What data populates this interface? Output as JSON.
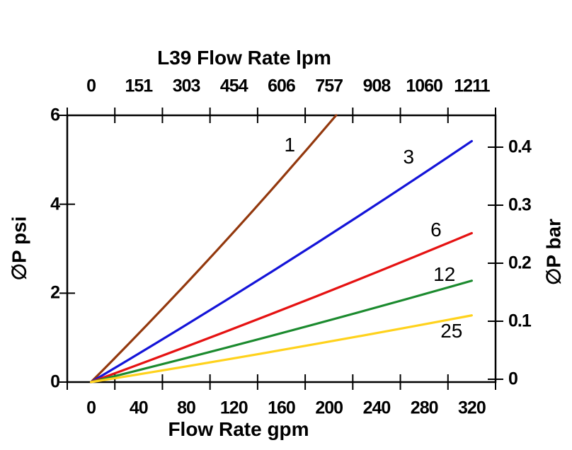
{
  "chart_data": {
    "type": "line",
    "title": "L39 Flow Rate lpm",
    "background": "#ffffff",
    "frame_color": "#000000",
    "grid": false,
    "legend": "inline-curve-labels",
    "top_axis": {
      "label": "L39 Flow Rate lpm",
      "unit": "lpm",
      "tick_labels": [
        "0",
        "151",
        "303",
        "454",
        "606",
        "757",
        "908",
        "1060",
        "1211"
      ]
    },
    "bottom_axis": {
      "label": "Flow Rate gpm",
      "unit": "gpm",
      "tick_labels": [
        "0",
        "40",
        "80",
        "120",
        "160",
        "200",
        "240",
        "280",
        "320"
      ],
      "tick_values_gpm": [
        0,
        40,
        80,
        120,
        160,
        200,
        240,
        280,
        320
      ],
      "minor_tick_values_gpm": [
        -20,
        20,
        60,
        100,
        140,
        180,
        220,
        260,
        300,
        340
      ],
      "range_gpm": [
        -20,
        340
      ]
    },
    "left_axis": {
      "label": "∅P psi",
      "unit": "psi",
      "tick_labels": [
        "0",
        "2",
        "4",
        "6"
      ],
      "tick_values_psi": [
        0,
        2,
        4,
        6
      ],
      "range_psi": [
        0,
        6
      ]
    },
    "right_axis": {
      "label": "∅P bar",
      "unit": "bar",
      "tick_labels": [
        "0",
        "0.1",
        "0.2",
        "0.3",
        "0.4"
      ],
      "tick_values_bar": [
        0,
        0.1,
        0.2,
        0.3,
        0.4
      ]
    },
    "series": [
      {
        "name": "1",
        "color": "#93380D",
        "points_gpm_psi": [
          [
            0,
            0
          ],
          [
            103,
            2.88
          ],
          [
            206,
            6.0
          ]
        ],
        "label_pos_gpm_psi": [
          167,
          5.33
        ]
      },
      {
        "name": "3",
        "color": "#1414D8",
        "points_gpm_psi": [
          [
            0,
            0
          ],
          [
            160,
            2.62
          ],
          [
            320,
            5.42
          ]
        ],
        "label_pos_gpm_psi": [
          267,
          5.06
        ]
      },
      {
        "name": "6",
        "color": "#E51212",
        "points_gpm_psi": [
          [
            0,
            0
          ],
          [
            160,
            1.62
          ],
          [
            320,
            3.35
          ]
        ],
        "label_pos_gpm_psi": [
          290,
          3.42
        ]
      },
      {
        "name": "12",
        "color": "#1B8A2E",
        "points_gpm_psi": [
          [
            0,
            0
          ],
          [
            160,
            1.1
          ],
          [
            320,
            2.28
          ]
        ],
        "label_pos_gpm_psi": [
          297,
          2.42
        ]
      },
      {
        "name": "25",
        "color": "#FFD21C",
        "points_gpm_psi": [
          [
            0,
            0
          ],
          [
            160,
            0.72
          ],
          [
            320,
            1.5
          ]
        ],
        "label_pos_gpm_psi": [
          303,
          1.15
        ]
      }
    ]
  }
}
